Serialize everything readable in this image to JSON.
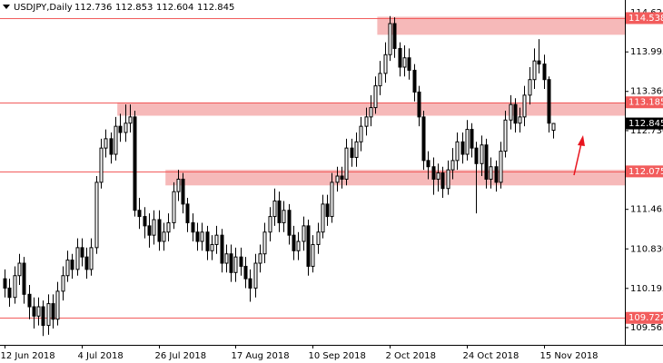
{
  "chart_data": {
    "type": "candlestick",
    "title": "USDJPY,Daily",
    "categories": [
      "12 Jun 2018",
      null,
      null,
      null,
      null,
      null,
      null,
      null,
      null,
      null,
      null,
      null,
      null,
      null,
      null,
      null,
      "4 Jul 2018",
      null,
      null,
      null,
      null,
      null,
      null,
      null,
      null,
      null,
      null,
      null,
      null,
      null,
      null,
      null,
      "26 Jul 2018",
      null,
      null,
      null,
      null,
      null,
      null,
      null,
      null,
      null,
      null,
      null,
      null,
      null,
      null,
      null,
      "17 Aug 2018",
      null,
      null,
      null,
      null,
      null,
      null,
      null,
      null,
      null,
      null,
      null,
      null,
      null,
      null,
      null,
      "10 Sep 2018",
      null,
      null,
      null,
      null,
      null,
      null,
      null,
      null,
      null,
      null,
      null,
      null,
      null,
      null,
      null,
      "2 Oct 2018",
      null,
      null,
      null,
      null,
      null,
      null,
      null,
      null,
      null,
      null,
      null,
      null,
      null,
      null,
      null,
      "24 Oct 2018",
      null,
      null,
      null,
      null,
      null,
      null,
      null,
      null,
      null,
      null,
      null,
      null,
      null,
      null,
      null,
      "15 Nov 2018",
      null,
      null
    ],
    "open": [
      110.35,
      110.2,
      110.05,
      110.4,
      110.6,
      110.1,
      109.9,
      109.75,
      109.9,
      109.6,
      109.95,
      109.7,
      110.15,
      110.4,
      110.65,
      110.5,
      110.85,
      110.7,
      110.5,
      110.85,
      111.9,
      112.45,
      112.6,
      112.35,
      112.8,
      112.7,
      112.85,
      112.95,
      111.45,
      111.35,
      111.2,
      111.05,
      111.3,
      110.95,
      111.1,
      111.25,
      111.75,
      111.95,
      111.55,
      111.25,
      111.1,
      110.95,
      111.1,
      110.8,
      110.9,
      111.05,
      110.6,
      110.75,
      110.45,
      110.7,
      110.55,
      110.35,
      110.2,
      110.6,
      110.75,
      111.1,
      111.35,
      111.6,
      111.25,
      111.45,
      111.05,
      110.8,
      110.95,
      111.2,
      110.55,
      110.9,
      111.1,
      111.55,
      111.35,
      111.9,
      112.0,
      111.95,
      112.45,
      112.3,
      112.55,
      112.8,
      112.95,
      113.1,
      113.45,
      113.65,
      113.95,
      114.45,
      114.05,
      113.75,
      113.9,
      113.7,
      113.35,
      112.95,
      112.25,
      112.15,
      111.95,
      112.05,
      111.8,
      112.1,
      112.25,
      112.55,
      112.35,
      112.75,
      112.45,
      112.2,
      112.5,
      111.95,
      112.15,
      111.9,
      112.4,
      112.9,
      113.15,
      112.85,
      112.95,
      113.3,
      113.55,
      113.85,
      113.8,
      113.55,
      112.736
    ],
    "high": [
      110.5,
      110.35,
      110.55,
      110.75,
      110.7,
      110.25,
      110.05,
      110.05,
      110.0,
      110.1,
      110.1,
      110.3,
      110.55,
      110.8,
      110.75,
      111.0,
      111.0,
      110.85,
      111.0,
      112.0,
      112.6,
      112.75,
      112.7,
      112.95,
      113.0,
      113.15,
      113.15,
      113.05,
      111.65,
      111.5,
      111.4,
      111.45,
      111.45,
      111.25,
      111.4,
      111.9,
      112.1,
      112.05,
      111.65,
      111.4,
      111.25,
      111.25,
      111.2,
      111.05,
      111.2,
      111.15,
      110.9,
      110.9,
      110.85,
      110.85,
      110.7,
      110.5,
      110.75,
      110.9,
      111.25,
      111.5,
      111.8,
      111.75,
      111.6,
      111.55,
      111.2,
      111.1,
      111.35,
      111.3,
      111.05,
      111.25,
      111.7,
      111.7,
      112.05,
      112.15,
      112.15,
      112.6,
      112.6,
      112.7,
      112.95,
      113.1,
      113.3,
      113.6,
      113.85,
      114.15,
      114.57,
      114.55,
      114.15,
      114.1,
      114.05,
      113.8,
      113.45,
      113.05,
      112.4,
      112.3,
      112.2,
      112.15,
      112.25,
      112.45,
      112.7,
      112.7,
      112.9,
      112.85,
      112.55,
      112.65,
      112.6,
      112.3,
      112.25,
      112.55,
      113.05,
      113.3,
      113.25,
      113.1,
      113.45,
      113.75,
      114.05,
      114.2,
      113.95,
      113.6,
      112.853
    ],
    "low": [
      110.05,
      109.9,
      109.95,
      110.25,
      109.95,
      109.7,
      109.55,
      109.6,
      109.43,
      109.45,
      109.55,
      109.6,
      110.0,
      110.3,
      110.35,
      110.4,
      110.55,
      110.35,
      110.4,
      110.75,
      111.8,
      112.3,
      112.2,
      112.25,
      112.55,
      112.55,
      112.7,
      111.35,
      111.15,
      111.0,
      110.85,
      110.9,
      110.8,
      110.8,
      110.95,
      111.15,
      111.6,
      111.4,
      111.1,
      110.95,
      110.8,
      110.8,
      110.65,
      110.65,
      110.75,
      110.45,
      110.45,
      110.3,
      110.3,
      110.4,
      110.2,
      109.98,
      110.05,
      110.45,
      110.6,
      110.95,
      111.2,
      111.1,
      111.1,
      110.9,
      110.65,
      110.65,
      110.8,
      110.4,
      110.45,
      110.75,
      111.0,
      111.2,
      111.25,
      111.75,
      111.8,
      111.85,
      112.15,
      112.15,
      112.4,
      112.65,
      112.8,
      113.0,
      113.3,
      113.5,
      113.85,
      113.9,
      113.6,
      113.6,
      113.55,
      113.2,
      112.8,
      112.1,
      111.95,
      111.7,
      111.75,
      111.65,
      111.7,
      111.95,
      112.1,
      112.2,
      112.25,
      112.3,
      111.4,
      112.0,
      111.8,
      111.8,
      111.75,
      111.8,
      112.3,
      112.75,
      112.7,
      112.7,
      112.8,
      113.15,
      113.4,
      113.65,
      113.4,
      112.7,
      112.604
    ],
    "close": [
      110.2,
      110.05,
      110.4,
      110.6,
      110.1,
      109.9,
      109.75,
      109.9,
      109.6,
      109.95,
      109.7,
      110.15,
      110.4,
      110.65,
      110.5,
      110.85,
      110.7,
      110.5,
      110.85,
      111.9,
      112.45,
      112.6,
      112.35,
      112.8,
      112.7,
      112.85,
      112.95,
      111.45,
      111.35,
      111.2,
      111.05,
      111.3,
      110.95,
      111.1,
      111.25,
      111.75,
      111.95,
      111.55,
      111.25,
      111.1,
      110.95,
      111.1,
      110.8,
      110.9,
      111.05,
      110.6,
      110.75,
      110.45,
      110.7,
      110.55,
      110.35,
      110.2,
      110.6,
      110.75,
      111.1,
      111.35,
      111.6,
      111.25,
      111.45,
      111.05,
      110.8,
      110.95,
      111.2,
      110.55,
      110.9,
      111.1,
      111.55,
      111.35,
      111.9,
      112.0,
      111.95,
      112.45,
      112.3,
      112.55,
      112.8,
      112.95,
      113.1,
      113.45,
      113.65,
      113.95,
      114.45,
      114.05,
      113.75,
      113.9,
      113.7,
      113.35,
      112.95,
      112.25,
      112.15,
      111.95,
      112.05,
      111.8,
      112.1,
      112.25,
      112.55,
      112.35,
      112.75,
      112.45,
      112.2,
      112.5,
      111.95,
      112.15,
      111.9,
      112.4,
      112.9,
      113.15,
      112.85,
      112.95,
      113.3,
      113.55,
      113.85,
      113.8,
      113.55,
      112.85,
      112.845
    ],
    "ylim": [
      109.288,
      114.829
    ],
    "yticks": [
      114.625,
      113.995,
      {
        "value": 113.36,
        "label": "113.360"
      },
      {
        "value": 112.73,
        "label": "112.730"
      },
      111.465,
      {
        "value": 110.83,
        "label": "110.830"
      },
      110.195,
      109.565
    ],
    "levels": [
      114.538,
      113.185,
      112.075,
      109.722
    ],
    "level_color": "#f25c5c",
    "zones": [
      {
        "from": 114.27,
        "to": 114.56,
        "start": 78
      },
      {
        "from": 112.97,
        "to": 113.185,
        "start": 24
      },
      {
        "from": 111.85,
        "to": 112.1,
        "start": 34
      }
    ],
    "zone_color": "#f6b9b9",
    "up_color": "#ffffff",
    "down_color": "#000000"
  }
}
